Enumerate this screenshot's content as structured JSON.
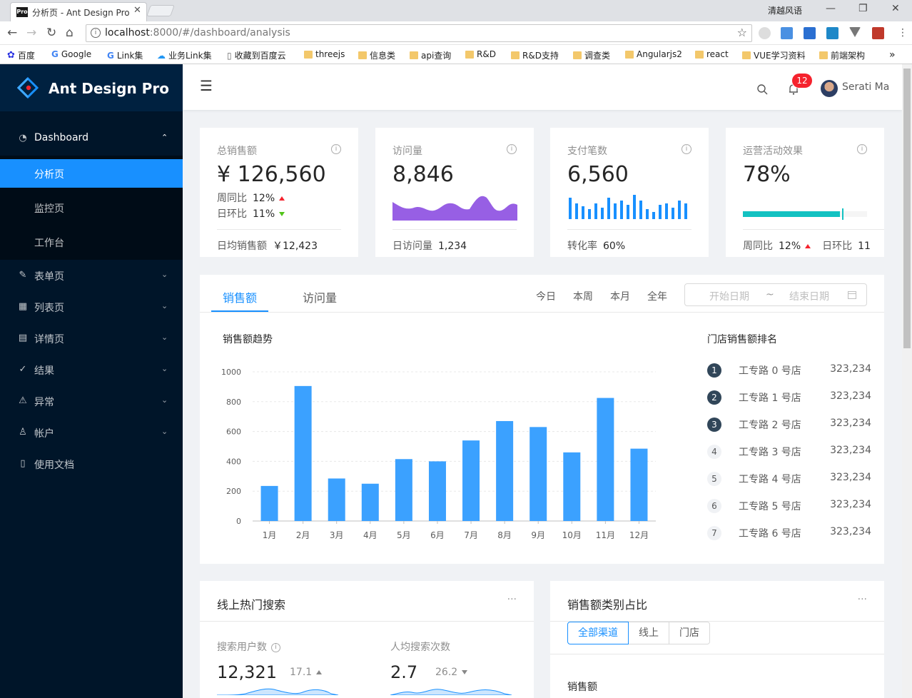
{
  "browser": {
    "tab_title": "分析页 - Ant Design Pro",
    "tab_favicon": "Pro",
    "window_title": "清越风语",
    "url_host": "localhost",
    "url_rest": ":8000/#/dashboard/analysis",
    "bookmarks": [
      "百度",
      "Google",
      "Link集",
      "业务Link集",
      "收藏到百度云",
      "threejs",
      "信息类",
      "api查询",
      "R&D",
      "R&D支持",
      "调查类",
      "Angularjs2",
      "react",
      "VUE学习资料",
      "前端架构"
    ],
    "more_bookmarks": "»"
  },
  "sidebar": {
    "app_name": "Ant Design Pro",
    "items": [
      {
        "label": "Dashboard",
        "icon": "dashboard-icon",
        "expanded": true
      },
      {
        "label": "表单页",
        "icon": "form-icon"
      },
      {
        "label": "列表页",
        "icon": "table-icon"
      },
      {
        "label": "详情页",
        "icon": "profile-icon"
      },
      {
        "label": "结果",
        "icon": "check-circle-icon"
      },
      {
        "label": "异常",
        "icon": "warning-icon"
      },
      {
        "label": "帐户",
        "icon": "user-icon"
      },
      {
        "label": "使用文档",
        "icon": "book-icon"
      }
    ],
    "subitems": [
      {
        "label": "分析页",
        "active": true
      },
      {
        "label": "监控页"
      },
      {
        "label": "工作台"
      }
    ]
  },
  "header": {
    "notification_count": "12",
    "user_name": "Serati Ma"
  },
  "metrics": {
    "sales": {
      "title": "总销售额",
      "value": "¥ 126,560",
      "wow_label": "周同比",
      "wow": "12%",
      "dod_label": "日环比",
      "dod": "11%",
      "foot_label": "日均销售额",
      "foot_value": "￥12,423"
    },
    "visits": {
      "title": "访问量",
      "value": "8,846",
      "foot_label": "日访问量",
      "foot_value": "1,234"
    },
    "payments": {
      "title": "支付笔数",
      "value": "6,560",
      "foot_label": "转化率",
      "foot_value": "60%"
    },
    "ops": {
      "title": "运营活动效果",
      "value": "78%",
      "progress": 0.78,
      "target": 0.8,
      "wow_label": "周同比",
      "wow": "12%",
      "dod_label": "日环比",
      "dod": "11"
    }
  },
  "sales_card": {
    "tabs": [
      "销售额",
      "访问量"
    ],
    "ranges": [
      "今日",
      "本周",
      "本月",
      "全年"
    ],
    "date_start_placeholder": "开始日期",
    "date_sep": "~",
    "date_end_placeholder": "结束日期",
    "chart_title": "销售额趋势",
    "ranking_title": "门店销售额排名",
    "ranking": [
      {
        "rank": "1",
        "name": "工专路 0 号店",
        "value": "323,234"
      },
      {
        "rank": "2",
        "name": "工专路 1 号店",
        "value": "323,234"
      },
      {
        "rank": "3",
        "name": "工专路 2 号店",
        "value": "323,234"
      },
      {
        "rank": "4",
        "name": "工专路 3 号店",
        "value": "323,234"
      },
      {
        "rank": "5",
        "name": "工专路 4 号店",
        "value": "323,234"
      },
      {
        "rank": "6",
        "name": "工专路 5 号店",
        "value": "323,234"
      },
      {
        "rank": "7",
        "name": "工专路 6 号店",
        "value": "323,234"
      }
    ]
  },
  "chart_data": {
    "type": "bar",
    "categories": [
      "1月",
      "2月",
      "3月",
      "4月",
      "5月",
      "6月",
      "7月",
      "8月",
      "9月",
      "10月",
      "11月",
      "12月"
    ],
    "values": [
      235,
      905,
      285,
      250,
      415,
      400,
      540,
      670,
      630,
      460,
      825,
      485
    ],
    "ylim": [
      0,
      1000
    ],
    "yticks": [
      0,
      200,
      400,
      600,
      800,
      1000
    ],
    "color": "#3ba1ff",
    "grid": true
  },
  "search_card": {
    "title": "线上热门搜索",
    "more": "···",
    "users_label": "搜索用户数",
    "users_value": "12,321",
    "users_change": "17.1",
    "per_label": "人均搜索次数",
    "per_value": "2.7",
    "per_change": "26.2"
  },
  "category_card": {
    "title": "销售额类别占比",
    "more": "···",
    "segments": [
      "全部渠道",
      "线上",
      "门店"
    ],
    "sub_label": "销售额"
  },
  "colors": {
    "primary": "#1890ff",
    "sider": "#001529",
    "visits_area": "#975fe4",
    "payments_bar": "#1890ff",
    "progress": "#13c2c2"
  }
}
